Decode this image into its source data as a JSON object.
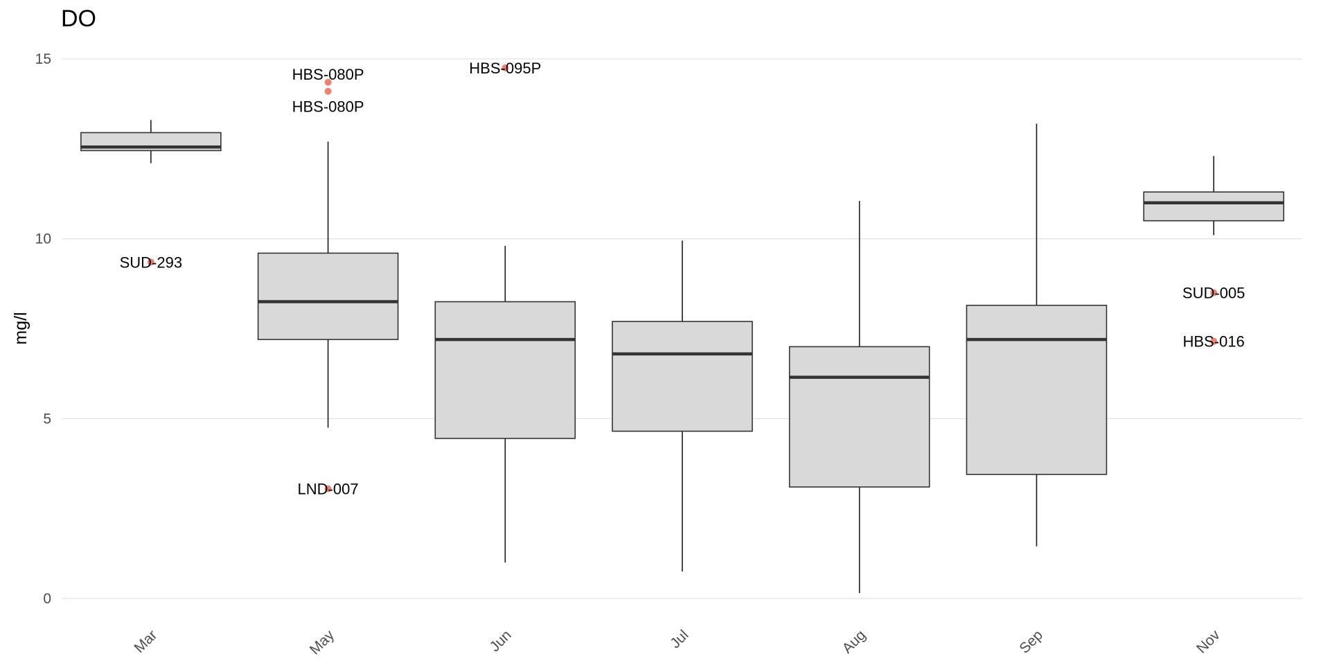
{
  "chart_data": {
    "type": "boxplot",
    "title": "DO",
    "xlabel": "",
    "ylabel": "mg/l",
    "ylim": [
      0,
      15.5
    ],
    "yticks": [
      0,
      5,
      10,
      15
    ],
    "grid": true,
    "colors": {
      "box_fill": "#d9d9d9",
      "box_stroke": "#333333",
      "outlier": "#f08070",
      "grid": "#e5e5e5"
    },
    "categories": [
      "Mar",
      "May",
      "Jun",
      "Jul",
      "Aug",
      "Sep",
      "Nov"
    ],
    "boxes": [
      {
        "category": "Mar",
        "whisker_low": 12.1,
        "q1": 12.45,
        "median": 12.55,
        "q3": 12.95,
        "whisker_high": 13.3,
        "outliers": [
          {
            "y": 9.35,
            "label": "SUD-293"
          }
        ]
      },
      {
        "category": "May",
        "whisker_low": 4.75,
        "q1": 7.2,
        "median": 8.25,
        "q3": 9.6,
        "whisker_high": 12.7,
        "outliers": [
          {
            "y": 14.35,
            "label": "HBS-080P"
          },
          {
            "y": 14.1,
            "label": "HBS-080P"
          },
          {
            "y": 3.05,
            "label": "LND-007"
          }
        ]
      },
      {
        "category": "Jun",
        "whisker_low": 1.0,
        "q1": 4.45,
        "median": 7.2,
        "q3": 8.25,
        "whisker_high": 9.8,
        "outliers": [
          {
            "y": 14.75,
            "label": "HBS-095P"
          }
        ]
      },
      {
        "category": "Jul",
        "whisker_low": 0.75,
        "q1": 4.65,
        "median": 6.8,
        "q3": 7.7,
        "whisker_high": 9.95,
        "outliers": []
      },
      {
        "category": "Aug",
        "whisker_low": 0.15,
        "q1": 3.1,
        "median": 6.15,
        "q3": 7.0,
        "whisker_high": 11.05,
        "outliers": []
      },
      {
        "category": "Sep",
        "whisker_low": 1.45,
        "q1": 3.45,
        "median": 7.2,
        "q3": 8.15,
        "whisker_high": 13.2,
        "outliers": []
      },
      {
        "category": "Nov",
        "whisker_low": 10.1,
        "q1": 10.5,
        "median": 11.0,
        "q3": 11.3,
        "whisker_high": 12.3,
        "outliers": [
          {
            "y": 8.5,
            "label": "SUD-005"
          },
          {
            "y": 7.15,
            "label": "HBS-016"
          }
        ]
      }
    ]
  }
}
